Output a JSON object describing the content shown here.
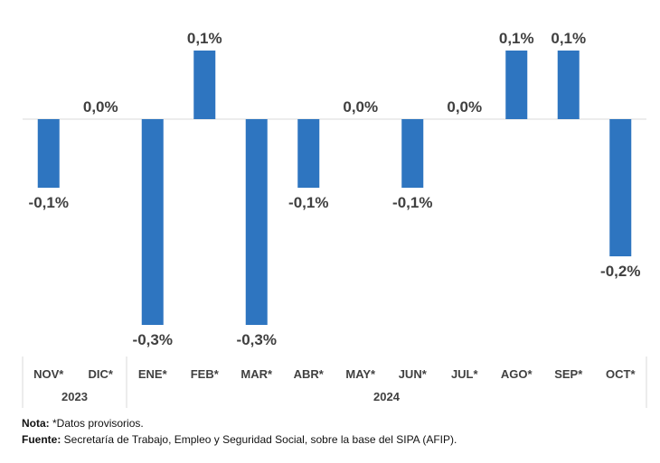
{
  "chart_data": {
    "type": "bar",
    "categories": [
      "NOV*",
      "DIC*",
      "ENE*",
      "FEB*",
      "MAR*",
      "ABR*",
      "MAY*",
      "JUN*",
      "JUL*",
      "AGO*",
      "SEP*",
      "OCT*"
    ],
    "values": [
      -0.1,
      0.0,
      -0.3,
      0.1,
      -0.3,
      -0.1,
      0.0,
      -0.1,
      0.0,
      0.1,
      0.1,
      -0.2
    ],
    "data_labels": [
      "-0,1%",
      "0,0%",
      "-0,3%",
      "0,1%",
      "-0,3%",
      "-0,1%",
      "0,0%",
      "-0,1%",
      "0,0%",
      "0,1%",
      "0,1%",
      "-0,2%"
    ],
    "year_groups": [
      {
        "label": "2023",
        "start": 0,
        "end": 1
      },
      {
        "label": "2024",
        "start": 2,
        "end": 11
      }
    ],
    "ylim": [
      -0.3,
      0.1
    ],
    "bar_color": "#2e75c0",
    "grid": false,
    "title": "",
    "xlabel": "",
    "ylabel": ""
  },
  "notes": {
    "nota_label": "Nota:",
    "nota_text": " *Datos provisorios.",
    "fuente_label": "Fuente:",
    "fuente_text": " Secretaría de Trabajo, Empleo y Seguridad Social, sobre la base del SIPA (AFIP)."
  }
}
